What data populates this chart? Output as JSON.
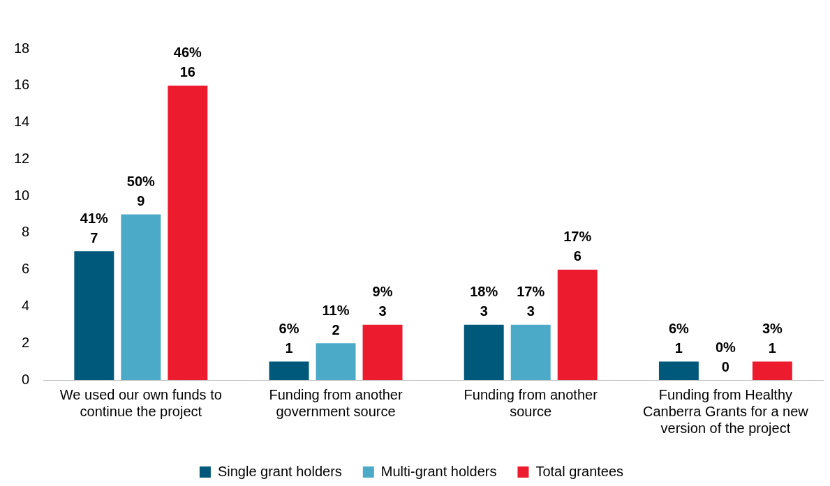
{
  "chart_data": {
    "type": "bar",
    "categories": [
      "We used our own funds to continue the project",
      "Funding from another government source",
      "Funding from another source",
      "Funding from Healthy Canberra Grants for a new version of the project"
    ],
    "series": [
      {
        "name": "Single grant holders",
        "color": "#00587a",
        "values": [
          7,
          1,
          3,
          1
        ],
        "value_labels": [
          "41%\n7",
          "6%\n1",
          "18%\n3",
          "6%\n1"
        ]
      },
      {
        "name": "Multi-grant holders",
        "color": "#4baac8",
        "values": [
          9,
          2,
          3,
          0
        ],
        "value_labels": [
          "50%\n9",
          "11%\n2",
          "17%\n3",
          "0%\n0"
        ]
      },
      {
        "name": "Total grantees",
        "color": "#ec1c2e",
        "values": [
          16,
          3,
          6,
          1
        ],
        "value_labels": [
          "46%\n16",
          "9%\n3",
          "17%\n6",
          "3%\n1"
        ]
      }
    ],
    "ylim": [
      0,
      18
    ],
    "yticks": [
      0,
      2,
      4,
      6,
      8,
      10,
      12,
      14,
      16,
      18
    ],
    "grid": false,
    "legend": "bottom"
  }
}
